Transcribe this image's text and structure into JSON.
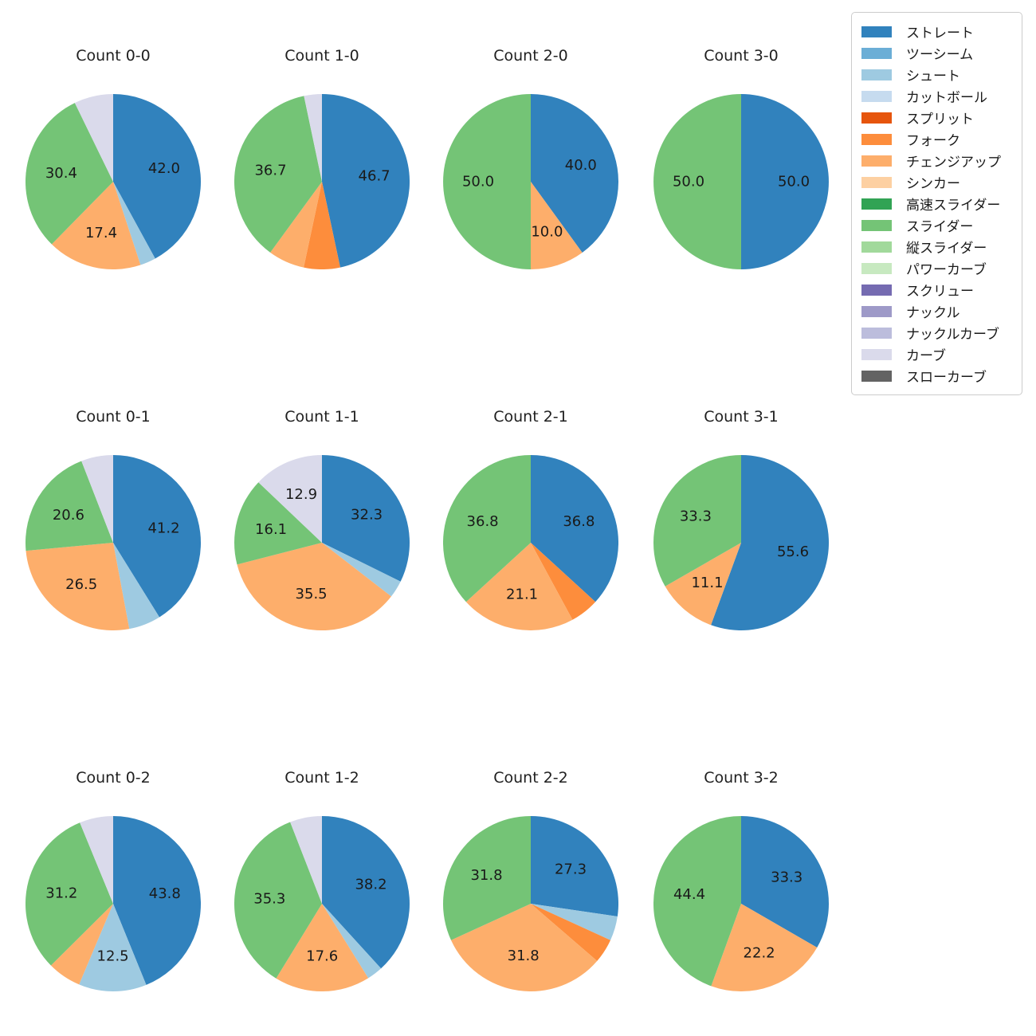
{
  "legend": {
    "items": [
      {
        "label": "ストレート",
        "color": "#3182bd"
      },
      {
        "label": "ツーシーム",
        "color": "#6baed6"
      },
      {
        "label": "シュート",
        "color": "#9ecae1"
      },
      {
        "label": "カットボール",
        "color": "#c6dbef"
      },
      {
        "label": "スプリット",
        "color": "#e6550d"
      },
      {
        "label": "フォーク",
        "color": "#fd8d3c"
      },
      {
        "label": "チェンジアップ",
        "color": "#fdae6b"
      },
      {
        "label": "シンカー",
        "color": "#fdd0a2"
      },
      {
        "label": "高速スライダー",
        "color": "#31a354"
      },
      {
        "label": "スライダー",
        "color": "#74c476"
      },
      {
        "label": "縦スライダー",
        "color": "#a1d99b"
      },
      {
        "label": "パワーカーブ",
        "color": "#c7e9c0"
      },
      {
        "label": "スクリュー",
        "color": "#756bb1"
      },
      {
        "label": "ナックル",
        "color": "#9e9ac8"
      },
      {
        "label": "ナックルカーブ",
        "color": "#bcbddc"
      },
      {
        "label": "カーブ",
        "color": "#dadaeb"
      },
      {
        "label": "スローカーブ",
        "color": "#636363"
      }
    ]
  },
  "chart_data": {
    "type": "pie",
    "layout": "4x3-grid",
    "start_angle_deg": 0,
    "direction": "clockwise",
    "palette": {
      "ストレート": "#3182bd",
      "ツーシーム": "#6baed6",
      "シュート": "#9ecae1",
      "カットボール": "#c6dbef",
      "スプリット": "#e6550d",
      "フォーク": "#fd8d3c",
      "チェンジアップ": "#fdae6b",
      "シンカー": "#fdd0a2",
      "高速スライダー": "#31a354",
      "スライダー": "#74c476",
      "縦スライダー": "#a1d99b",
      "パワーカーブ": "#c7e9c0",
      "スクリュー": "#756bb1",
      "ナックル": "#9e9ac8",
      "ナックルカーブ": "#bcbddc",
      "カーブ": "#dadaeb",
      "スローカーブ": "#636363"
    },
    "pies": [
      {
        "title": "Count 0-0",
        "slices": [
          {
            "name": "ストレート",
            "pct": 42.0,
            "label": "42.0"
          },
          {
            "name": "シュート",
            "pct": 2.9,
            "label": ""
          },
          {
            "name": "チェンジアップ",
            "pct": 17.4,
            "label": "17.4"
          },
          {
            "name": "スライダー",
            "pct": 30.4,
            "label": "30.4"
          },
          {
            "name": "カーブ",
            "pct": 7.2,
            "label": ""
          }
        ]
      },
      {
        "title": "Count 1-0",
        "slices": [
          {
            "name": "ストレート",
            "pct": 46.7,
            "label": "46.7"
          },
          {
            "name": "フォーク",
            "pct": 6.7,
            "label": ""
          },
          {
            "name": "チェンジアップ",
            "pct": 6.7,
            "label": ""
          },
          {
            "name": "スライダー",
            "pct": 36.7,
            "label": "36.7"
          },
          {
            "name": "カーブ",
            "pct": 3.3,
            "label": ""
          }
        ]
      },
      {
        "title": "Count 2-0",
        "slices": [
          {
            "name": "ストレート",
            "pct": 40.0,
            "label": "40.0"
          },
          {
            "name": "チェンジアップ",
            "pct": 10.0,
            "label": "10.0"
          },
          {
            "name": "スライダー",
            "pct": 50.0,
            "label": "50.0"
          }
        ]
      },
      {
        "title": "Count 3-0",
        "slices": [
          {
            "name": "ストレート",
            "pct": 50.0,
            "label": "50.0"
          },
          {
            "name": "スライダー",
            "pct": 50.0,
            "label": "50.0"
          }
        ]
      },
      {
        "title": "Count 0-1",
        "slices": [
          {
            "name": "ストレート",
            "pct": 41.2,
            "label": "41.2"
          },
          {
            "name": "シュート",
            "pct": 5.9,
            "label": ""
          },
          {
            "name": "チェンジアップ",
            "pct": 26.5,
            "label": "26.5"
          },
          {
            "name": "スライダー",
            "pct": 20.6,
            "label": "20.6"
          },
          {
            "name": "カーブ",
            "pct": 5.9,
            "label": ""
          }
        ]
      },
      {
        "title": "Count 1-1",
        "slices": [
          {
            "name": "ストレート",
            "pct": 32.3,
            "label": "32.3"
          },
          {
            "name": "シュート",
            "pct": 3.2,
            "label": ""
          },
          {
            "name": "チェンジアップ",
            "pct": 35.5,
            "label": "35.5"
          },
          {
            "name": "スライダー",
            "pct": 16.1,
            "label": "16.1"
          },
          {
            "name": "カーブ",
            "pct": 12.9,
            "label": "12.9"
          }
        ]
      },
      {
        "title": "Count 2-1",
        "slices": [
          {
            "name": "ストレート",
            "pct": 36.8,
            "label": "36.8"
          },
          {
            "name": "フォーク",
            "pct": 5.3,
            "label": ""
          },
          {
            "name": "チェンジアップ",
            "pct": 21.1,
            "label": "21.1"
          },
          {
            "name": "スライダー",
            "pct": 36.8,
            "label": "36.8"
          }
        ]
      },
      {
        "title": "Count 3-1",
        "slices": [
          {
            "name": "ストレート",
            "pct": 55.6,
            "label": "55.6"
          },
          {
            "name": "チェンジアップ",
            "pct": 11.1,
            "label": "11.1"
          },
          {
            "name": "スライダー",
            "pct": 33.3,
            "label": "33.3"
          }
        ]
      },
      {
        "title": "Count 0-2",
        "slices": [
          {
            "name": "ストレート",
            "pct": 43.8,
            "label": "43.8"
          },
          {
            "name": "シュート",
            "pct": 12.5,
            "label": "12.5"
          },
          {
            "name": "チェンジアップ",
            "pct": 6.2,
            "label": ""
          },
          {
            "name": "スライダー",
            "pct": 31.2,
            "label": "31.2"
          },
          {
            "name": "カーブ",
            "pct": 6.2,
            "label": ""
          }
        ]
      },
      {
        "title": "Count 1-2",
        "slices": [
          {
            "name": "ストレート",
            "pct": 38.2,
            "label": "38.2"
          },
          {
            "name": "シュート",
            "pct": 2.9,
            "label": ""
          },
          {
            "name": "チェンジアップ",
            "pct": 17.6,
            "label": "17.6"
          },
          {
            "name": "スライダー",
            "pct": 35.3,
            "label": "35.3"
          },
          {
            "name": "カーブ",
            "pct": 5.9,
            "label": ""
          }
        ]
      },
      {
        "title": "Count 2-2",
        "slices": [
          {
            "name": "ストレート",
            "pct": 27.3,
            "label": "27.3"
          },
          {
            "name": "シュート",
            "pct": 4.5,
            "label": ""
          },
          {
            "name": "フォーク",
            "pct": 4.5,
            "label": ""
          },
          {
            "name": "チェンジアップ",
            "pct": 31.8,
            "label": "31.8"
          },
          {
            "name": "スライダー",
            "pct": 31.8,
            "label": "31.8"
          }
        ]
      },
      {
        "title": "Count 3-2",
        "slices": [
          {
            "name": "ストレート",
            "pct": 33.3,
            "label": "33.3"
          },
          {
            "name": "チェンジアップ",
            "pct": 22.2,
            "label": "22.2"
          },
          {
            "name": "スライダー",
            "pct": 44.4,
            "label": "44.4"
          }
        ]
      }
    ]
  }
}
